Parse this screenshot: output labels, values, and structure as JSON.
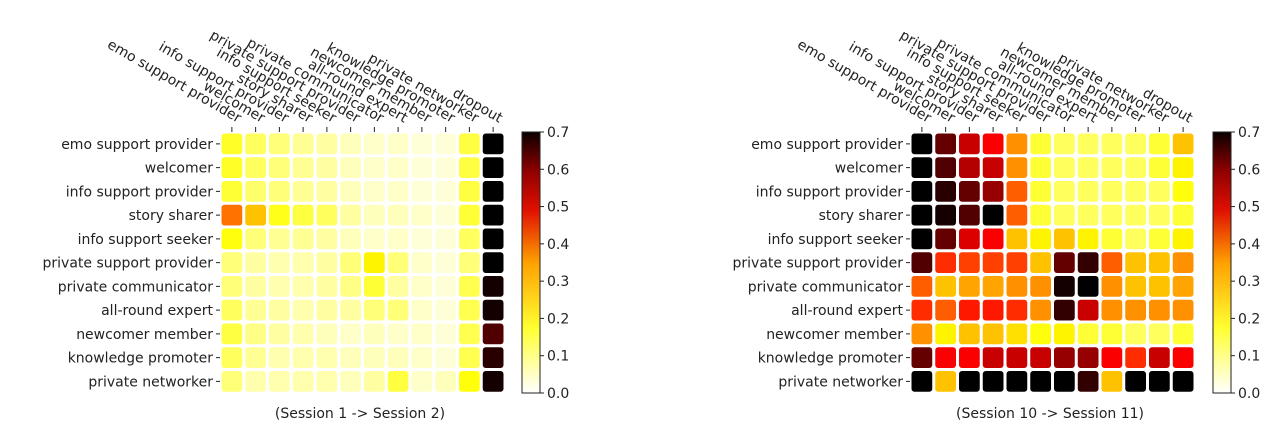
{
  "chart_data": [
    {
      "type": "heatmap",
      "caption": "(Session 1 -> Session 2)",
      "rows": [
        "emo support provider",
        "welcomer",
        "info support provider",
        "story sharer",
        "info support seeker",
        "private support provider",
        "private communicator",
        "all-round expert",
        "newcomer member",
        "knowledge promoter",
        "private networker"
      ],
      "cols": [
        "emo support provider",
        "welcomer",
        "info support provider",
        "story sharer",
        "info support seeker",
        "private support provider",
        "private communicator",
        "all-round expert",
        "newcomer member",
        "knowledge promoter",
        "private networker",
        "dropout"
      ],
      "colorbar": {
        "min": 0.0,
        "max": 0.7,
        "ticks": [
          "0.0",
          "0.1",
          "0.2",
          "0.3",
          "0.4",
          "0.5",
          "0.6",
          "0.7"
        ]
      },
      "values": [
        [
          0.16,
          0.12,
          0.1,
          0.08,
          0.07,
          0.05,
          0.04,
          0.04,
          0.03,
          0.03,
          0.14,
          0.7
        ],
        [
          0.16,
          0.12,
          0.1,
          0.08,
          0.07,
          0.05,
          0.04,
          0.04,
          0.03,
          0.03,
          0.14,
          0.7
        ],
        [
          0.15,
          0.11,
          0.1,
          0.08,
          0.07,
          0.05,
          0.04,
          0.04,
          0.03,
          0.03,
          0.14,
          0.7
        ],
        [
          0.33,
          0.25,
          0.17,
          0.14,
          0.12,
          0.07,
          0.05,
          0.05,
          0.04,
          0.03,
          0.15,
          0.7
        ],
        [
          0.18,
          0.1,
          0.08,
          0.08,
          0.07,
          0.05,
          0.04,
          0.04,
          0.03,
          0.03,
          0.12,
          0.7
        ],
        [
          0.1,
          0.07,
          0.06,
          0.06,
          0.07,
          0.1,
          0.2,
          0.1,
          0.04,
          0.03,
          0.1,
          0.7
        ],
        [
          0.1,
          0.07,
          0.06,
          0.06,
          0.07,
          0.09,
          0.15,
          0.07,
          0.04,
          0.03,
          0.13,
          0.68
        ],
        [
          0.12,
          0.08,
          0.07,
          0.06,
          0.07,
          0.07,
          0.1,
          0.1,
          0.04,
          0.03,
          0.13,
          0.68
        ],
        [
          0.14,
          0.09,
          0.07,
          0.06,
          0.05,
          0.04,
          0.05,
          0.04,
          0.04,
          0.03,
          0.13,
          0.62
        ],
        [
          0.12,
          0.08,
          0.06,
          0.06,
          0.06,
          0.05,
          0.05,
          0.05,
          0.04,
          0.03,
          0.13,
          0.66
        ],
        [
          0.1,
          0.06,
          0.06,
          0.06,
          0.06,
          0.05,
          0.07,
          0.14,
          0.04,
          0.05,
          0.18,
          0.68
        ]
      ]
    },
    {
      "type": "heatmap",
      "caption": "(Session 10 -> Session 11)",
      "rows": [
        "emo support provider",
        "welcomer",
        "info support provider",
        "story sharer",
        "info support seeker",
        "private support provider",
        "private communicator",
        "all-round expert",
        "newcomer member",
        "knowledge promoter",
        "private networker"
      ],
      "cols": [
        "emo support provider",
        "welcomer",
        "info support provider",
        "story sharer",
        "info support seeker",
        "private support provider",
        "private communicator",
        "all-round expert",
        "newcomer member",
        "knowledge promoter",
        "private networker",
        "dropout"
      ],
      "colorbar": {
        "min": 0.0,
        "max": 0.7,
        "ticks": [
          "0.0",
          "0.1",
          "0.2",
          "0.3",
          "0.4",
          "0.5",
          "0.6",
          "0.7"
        ]
      },
      "values": [
        [
          0.7,
          0.6,
          0.5,
          0.45,
          0.3,
          0.15,
          0.12,
          0.12,
          0.12,
          0.12,
          0.15,
          0.25
        ],
        [
          0.7,
          0.62,
          0.52,
          0.5,
          0.3,
          0.15,
          0.12,
          0.12,
          0.12,
          0.12,
          0.15,
          0.2
        ],
        [
          0.7,
          0.66,
          0.6,
          0.55,
          0.35,
          0.15,
          0.12,
          0.12,
          0.12,
          0.12,
          0.12,
          0.18
        ],
        [
          0.7,
          0.68,
          0.62,
          0.7,
          0.35,
          0.15,
          0.12,
          0.12,
          0.12,
          0.12,
          0.12,
          0.15
        ],
        [
          0.7,
          0.6,
          0.48,
          0.45,
          0.25,
          0.2,
          0.25,
          0.2,
          0.15,
          0.12,
          0.15,
          0.2
        ],
        [
          0.62,
          0.4,
          0.38,
          0.38,
          0.38,
          0.25,
          0.6,
          0.65,
          0.35,
          0.25,
          0.25,
          0.3
        ],
        [
          0.35,
          0.25,
          0.28,
          0.28,
          0.3,
          0.3,
          0.68,
          0.7,
          0.3,
          0.25,
          0.25,
          0.28
        ],
        [
          0.4,
          0.35,
          0.42,
          0.42,
          0.4,
          0.3,
          0.65,
          0.5,
          0.3,
          0.3,
          0.3,
          0.3
        ],
        [
          0.3,
          0.2,
          0.25,
          0.25,
          0.22,
          0.18,
          0.2,
          0.15,
          0.15,
          0.12,
          0.12,
          0.15
        ],
        [
          0.6,
          0.45,
          0.45,
          0.5,
          0.5,
          0.5,
          0.55,
          0.55,
          0.45,
          0.4,
          0.5,
          0.45
        ],
        [
          0.7,
          0.25,
          0.7,
          0.7,
          0.7,
          0.7,
          0.7,
          0.65,
          0.25,
          0.7,
          0.7,
          0.7
        ]
      ]
    }
  ]
}
